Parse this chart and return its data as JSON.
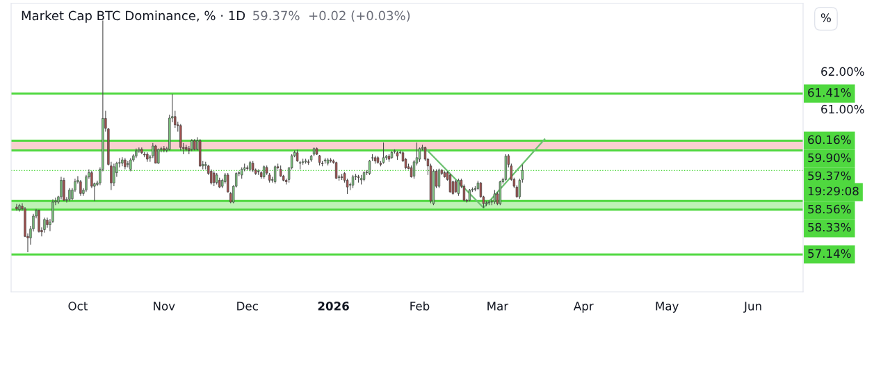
{
  "chart_data": {
    "type": "candlestick",
    "title": "Market Cap BTC Dominance, % · 1D",
    "subtitle": "59.37%  +0.02 (+0.03%)",
    "x": [
      "2025-09-09",
      "2025-09-10",
      "2025-09-11",
      "2025-09-12",
      "2025-09-13",
      "2025-09-14",
      "2025-09-15",
      "2025-09-16",
      "2025-09-17",
      "2025-09-18",
      "2025-09-19",
      "2025-09-20",
      "2025-09-21",
      "2025-09-22",
      "2025-09-23",
      "2025-09-24",
      "2025-09-25",
      "2025-09-26",
      "2025-09-27",
      "2025-09-28",
      "2025-09-29",
      "2025-09-30",
      "2025-10-01",
      "2025-10-02",
      "2025-10-03",
      "2025-10-04",
      "2025-10-05",
      "2025-10-06",
      "2025-10-07",
      "2025-10-08",
      "2025-10-09",
      "2025-10-10",
      "2025-10-11",
      "2025-10-12",
      "2025-10-13",
      "2025-10-14",
      "2025-10-15",
      "2025-10-16",
      "2025-10-17",
      "2025-10-18",
      "2025-10-19",
      "2025-10-20",
      "2025-10-21",
      "2025-10-22",
      "2025-10-23",
      "2025-10-24",
      "2025-10-25",
      "2025-10-26",
      "2025-10-27",
      "2025-10-28",
      "2025-10-29",
      "2025-10-30",
      "2025-10-31",
      "2025-11-01",
      "2025-11-02",
      "2025-11-03",
      "2025-11-04",
      "2025-11-05",
      "2025-11-06",
      "2025-11-07",
      "2025-11-08",
      "2025-11-09",
      "2025-11-10",
      "2025-11-11",
      "2025-11-12",
      "2025-11-13",
      "2025-11-14",
      "2025-11-15",
      "2025-11-16",
      "2025-11-17",
      "2025-11-18",
      "2025-11-19",
      "2025-11-20",
      "2025-11-21",
      "2025-11-22",
      "2025-11-23",
      "2025-11-24",
      "2025-11-25",
      "2025-11-26",
      "2025-11-27",
      "2025-11-28",
      "2025-11-29",
      "2025-11-30",
      "2025-12-01",
      "2025-12-02",
      "2025-12-03",
      "2025-12-04",
      "2025-12-05",
      "2025-12-06",
      "2025-12-07",
      "2025-12-08",
      "2025-12-09",
      "2025-12-10",
      "2025-12-11",
      "2025-12-12",
      "2025-12-13",
      "2025-12-14",
      "2025-12-15",
      "2025-12-16",
      "2025-12-17",
      "2025-12-18",
      "2025-12-19",
      "2025-12-20",
      "2025-12-21",
      "2025-12-22",
      "2025-12-23",
      "2025-12-24",
      "2025-12-25",
      "2025-12-26",
      "2025-12-27",
      "2025-12-28",
      "2025-12-29",
      "2025-12-30",
      "2025-12-31",
      "2026-01-01",
      "2026-01-02",
      "2026-01-03",
      "2026-01-04",
      "2026-01-05",
      "2026-01-06",
      "2026-01-07",
      "2026-01-08",
      "2026-01-09",
      "2026-01-10",
      "2026-01-11",
      "2026-01-12",
      "2026-01-13",
      "2026-01-14",
      "2026-01-15",
      "2026-01-16",
      "2026-01-17",
      "2026-01-18",
      "2026-01-19",
      "2026-01-20",
      "2026-01-21",
      "2026-01-22",
      "2026-01-23",
      "2026-01-24",
      "2026-01-25",
      "2026-01-26",
      "2026-01-27",
      "2026-01-28",
      "2026-01-29",
      "2026-01-30",
      "2026-01-31",
      "2026-02-01",
      "2026-02-02",
      "2026-02-03",
      "2026-02-04",
      "2026-02-05",
      "2026-02-06",
      "2026-02-07",
      "2026-02-08",
      "2026-02-09",
      "2026-02-10",
      "2026-02-11",
      "2026-02-12",
      "2026-02-13",
      "2026-02-14",
      "2026-02-15",
      "2026-02-16",
      "2026-02-17",
      "2026-02-18",
      "2026-02-19",
      "2026-02-20",
      "2026-02-21",
      "2026-02-22",
      "2026-02-23",
      "2026-02-24",
      "2026-02-25",
      "2026-02-26",
      "2026-02-27",
      "2026-02-28",
      "2026-03-01",
      "2026-03-02",
      "2026-03-03",
      "2026-03-04",
      "2026-03-05",
      "2026-03-06",
      "2026-03-07",
      "2026-03-08",
      "2026-03-09",
      "2026-03-10"
    ],
    "ohlc": [
      [
        58.4,
        58.48,
        58.3,
        58.35
      ],
      [
        58.33,
        58.48,
        58.28,
        58.44
      ],
      [
        58.42,
        58.5,
        58.3,
        58.35
      ],
      [
        58.35,
        58.4,
        57.6,
        57.62
      ],
      [
        57.62,
        57.7,
        57.2,
        57.58
      ],
      [
        57.58,
        57.9,
        57.4,
        57.82
      ],
      [
        57.82,
        58.22,
        57.75,
        58.16
      ],
      [
        58.16,
        58.35,
        58.1,
        58.31
      ],
      [
        58.31,
        58.33,
        57.72,
        57.75
      ],
      [
        57.78,
        57.86,
        57.62,
        57.74
      ],
      [
        57.8,
        58.12,
        57.72,
        58.07
      ],
      [
        58.05,
        58.12,
        57.85,
        57.93
      ],
      [
        57.93,
        58.08,
        57.76,
        58.0
      ],
      [
        58.02,
        58.6,
        57.98,
        58.53
      ],
      [
        58.53,
        58.65,
        58.45,
        58.56
      ],
      [
        58.53,
        58.7,
        58.48,
        58.67
      ],
      [
        58.67,
        59.2,
        58.6,
        59.11
      ],
      [
        59.11,
        59.18,
        58.56,
        58.58
      ],
      [
        58.58,
        58.66,
        58.52,
        58.6
      ],
      [
        58.6,
        58.9,
        58.55,
        58.85
      ],
      [
        58.62,
        58.9,
        58.58,
        58.85
      ],
      [
        58.85,
        59.15,
        58.8,
        59.07
      ],
      [
        59.07,
        59.22,
        59.02,
        59.11
      ],
      [
        59.07,
        59.12,
        58.7,
        58.76
      ],
      [
        58.76,
        58.9,
        58.7,
        58.85
      ],
      [
        58.85,
        59.25,
        58.8,
        59.2
      ],
      [
        59.2,
        59.4,
        59.15,
        59.31
      ],
      [
        59.31,
        59.36,
        58.9,
        58.95
      ],
      [
        58.95,
        59.05,
        58.56,
        59.02
      ],
      [
        59.0,
        59.1,
        58.95,
        59.04
      ],
      [
        59.04,
        59.45,
        58.98,
        59.4
      ],
      [
        59.4,
        63.35,
        59.35,
        60.75
      ],
      [
        60.75,
        60.95,
        60.4,
        60.49
      ],
      [
        60.47,
        60.5,
        59.5,
        59.53
      ],
      [
        59.49,
        59.6,
        58.85,
        59.04
      ],
      [
        59.04,
        59.55,
        58.95,
        59.47
      ],
      [
        59.31,
        59.6,
        59.2,
        59.56
      ],
      [
        59.56,
        59.7,
        59.45,
        59.58
      ],
      [
        59.56,
        59.72,
        59.48,
        59.65
      ],
      [
        59.65,
        59.7,
        59.4,
        59.47
      ],
      [
        59.53,
        59.62,
        59.45,
        59.55
      ],
      [
        59.4,
        59.7,
        59.35,
        59.65
      ],
      [
        59.65,
        59.8,
        59.6,
        59.76
      ],
      [
        59.75,
        59.95,
        59.7,
        59.89
      ],
      [
        59.89,
        59.98,
        59.84,
        59.93
      ],
      [
        59.93,
        59.98,
        59.8,
        59.84
      ],
      [
        59.8,
        59.86,
        59.72,
        59.78
      ],
      [
        59.8,
        59.85,
        59.6,
        59.67
      ],
      [
        59.7,
        59.78,
        59.6,
        59.73
      ],
      [
        59.76,
        60.1,
        59.7,
        60.02
      ],
      [
        60.02,
        60.05,
        59.56,
        59.56
      ],
      [
        59.56,
        59.95,
        59.55,
        59.93
      ],
      [
        59.93,
        60.0,
        59.85,
        59.95
      ],
      [
        59.95,
        60.02,
        59.85,
        59.91
      ],
      [
        59.91,
        60.0,
        59.85,
        59.95
      ],
      [
        59.93,
        60.85,
        59.9,
        60.76
      ],
      [
        60.76,
        61.4,
        60.65,
        60.8
      ],
      [
        60.8,
        60.95,
        60.5,
        60.58
      ],
      [
        60.58,
        60.66,
        60.4,
        60.56
      ],
      [
        60.56,
        60.6,
        59.9,
        59.98
      ],
      [
        59.98,
        60.1,
        59.8,
        59.95
      ],
      [
        59.98,
        60.05,
        59.88,
        59.93
      ],
      [
        59.95,
        60.02,
        59.8,
        59.9
      ],
      [
        59.93,
        60.2,
        59.88,
        60.16
      ],
      [
        60.16,
        60.2,
        59.9,
        59.93
      ],
      [
        59.93,
        60.25,
        59.9,
        60.16
      ],
      [
        60.16,
        60.2,
        59.47,
        59.49
      ],
      [
        59.49,
        59.62,
        59.4,
        59.53
      ],
      [
        59.53,
        59.6,
        59.4,
        59.5
      ],
      [
        59.49,
        59.52,
        59.25,
        59.29
      ],
      [
        59.35,
        59.4,
        59.0,
        59.04
      ],
      [
        59.3,
        59.35,
        58.95,
        59.05
      ],
      [
        59.05,
        59.3,
        59.0,
        59.25
      ],
      [
        59.11,
        59.18,
        58.9,
        58.93
      ],
      [
        58.95,
        59.15,
        58.9,
        59.11
      ],
      [
        59.07,
        59.3,
        59.02,
        59.25
      ],
      [
        59.25,
        59.3,
        58.78,
        58.8
      ],
      [
        58.76,
        58.8,
        58.5,
        58.53
      ],
      [
        58.53,
        58.98,
        58.5,
        58.95
      ],
      [
        58.95,
        59.32,
        58.92,
        59.29
      ],
      [
        59.29,
        59.35,
        59.22,
        59.31
      ],
      [
        59.25,
        59.45,
        59.15,
        59.4
      ],
      [
        59.4,
        59.55,
        59.35,
        59.44
      ],
      [
        59.44,
        59.5,
        59.38,
        59.42
      ],
      [
        59.4,
        59.62,
        59.35,
        59.58
      ],
      [
        59.56,
        59.62,
        59.33,
        59.38
      ],
      [
        59.38,
        59.42,
        59.25,
        59.29
      ],
      [
        59.33,
        59.4,
        59.25,
        59.35
      ],
      [
        59.31,
        59.35,
        59.15,
        59.2
      ],
      [
        59.2,
        59.5,
        59.15,
        59.47
      ],
      [
        59.45,
        59.5,
        59.25,
        59.3
      ],
      [
        59.25,
        59.3,
        59.05,
        59.11
      ],
      [
        59.11,
        59.2,
        59.05,
        59.13
      ],
      [
        59.07,
        59.5,
        59.02,
        59.47
      ],
      [
        59.47,
        59.55,
        59.4,
        59.44
      ],
      [
        59.4,
        59.5,
        59.2,
        59.22
      ],
      [
        59.22,
        59.25,
        59.08,
        59.11
      ],
      [
        59.11,
        59.15,
        59.0,
        59.07
      ],
      [
        59.13,
        59.45,
        59.05,
        59.44
      ],
      [
        59.44,
        59.8,
        59.4,
        59.76
      ],
      [
        59.76,
        59.9,
        59.72,
        59.85
      ],
      [
        59.84,
        59.92,
        59.6,
        59.62
      ],
      [
        59.56,
        59.62,
        59.4,
        59.58
      ],
      [
        59.58,
        59.68,
        59.52,
        59.6
      ],
      [
        59.6,
        59.68,
        59.55,
        59.62
      ],
      [
        59.6,
        59.66,
        59.52,
        59.58
      ],
      [
        59.65,
        59.78,
        59.6,
        59.75
      ],
      [
        59.8,
        59.98,
        59.75,
        59.95
      ],
      [
        59.95,
        59.98,
        59.78,
        59.8
      ],
      [
        59.76,
        59.78,
        59.5,
        59.58
      ],
      [
        59.56,
        59.62,
        59.48,
        59.55
      ],
      [
        59.62,
        59.7,
        59.55,
        59.65
      ],
      [
        59.56,
        59.7,
        59.5,
        59.65
      ],
      [
        59.65,
        59.7,
        59.58,
        59.62
      ],
      [
        59.62,
        59.66,
        59.55,
        59.58
      ],
      [
        59.58,
        59.6,
        59.15,
        59.16
      ],
      [
        59.18,
        59.25,
        59.1,
        59.2
      ],
      [
        59.2,
        59.28,
        59.12,
        59.18
      ],
      [
        59.29,
        59.33,
        59.05,
        59.11
      ],
      [
        59.11,
        59.15,
        58.75,
        58.93
      ],
      [
        58.98,
        59.05,
        58.85,
        59.0
      ],
      [
        58.98,
        59.25,
        58.9,
        59.2
      ],
      [
        59.2,
        59.28,
        59.12,
        59.22
      ],
      [
        59.2,
        59.25,
        59.05,
        59.18
      ],
      [
        59.12,
        59.25,
        59.0,
        59.16
      ],
      [
        59.13,
        59.35,
        59.08,
        59.31
      ],
      [
        59.31,
        59.38,
        59.25,
        59.33
      ],
      [
        59.29,
        59.65,
        59.25,
        59.62
      ],
      [
        59.7,
        59.8,
        59.62,
        59.71
      ],
      [
        59.71,
        59.76,
        59.55,
        59.62
      ],
      [
        59.71,
        59.75,
        59.55,
        59.58
      ],
      [
        59.56,
        59.62,
        59.48,
        59.53
      ],
      [
        59.58,
        60.11,
        59.55,
        59.71
      ],
      [
        59.71,
        59.78,
        59.65,
        59.75
      ],
      [
        59.75,
        59.8,
        59.6,
        59.67
      ],
      [
        59.71,
        59.88,
        59.68,
        59.85
      ],
      [
        59.87,
        59.93,
        59.82,
        59.89
      ],
      [
        59.84,
        59.88,
        59.65,
        59.75
      ],
      [
        59.84,
        59.9,
        59.8,
        59.85
      ],
      [
        59.84,
        59.88,
        59.6,
        59.62
      ],
      [
        59.67,
        59.7,
        59.4,
        59.44
      ],
      [
        59.47,
        59.55,
        59.4,
        59.42
      ],
      [
        59.44,
        59.5,
        59.18,
        59.2
      ],
      [
        59.22,
        59.65,
        59.15,
        59.6
      ],
      [
        59.56,
        60.11,
        59.5,
        59.71
      ],
      [
        59.67,
        59.98,
        59.6,
        59.95
      ],
      [
        59.95,
        60.05,
        59.9,
        59.98
      ],
      [
        59.98,
        60.0,
        59.62,
        59.67
      ],
      [
        59.67,
        59.7,
        59.25,
        59.49
      ],
      [
        59.49,
        59.55,
        58.5,
        58.56
      ],
      [
        58.49,
        59.4,
        58.45,
        59.35
      ],
      [
        59.35,
        59.4,
        58.9,
        58.95
      ],
      [
        58.95,
        59.42,
        58.9,
        59.38
      ],
      [
        59.38,
        59.4,
        59.25,
        59.29
      ],
      [
        59.31,
        59.35,
        59.18,
        59.2
      ],
      [
        59.31,
        59.35,
        59.1,
        59.13
      ],
      [
        59.25,
        59.28,
        58.78,
        58.8
      ],
      [
        59.07,
        59.1,
        58.72,
        58.76
      ],
      [
        59.07,
        59.12,
        58.78,
        58.8
      ],
      [
        58.76,
        59.15,
        58.7,
        59.11
      ],
      [
        59.11,
        59.15,
        58.9,
        58.95
      ],
      [
        58.95,
        59.0,
        58.55,
        58.58
      ],
      [
        58.58,
        58.62,
        58.52,
        58.56
      ],
      [
        58.58,
        58.88,
        58.55,
        58.85
      ],
      [
        58.85,
        58.92,
        58.8,
        58.87
      ],
      [
        58.87,
        58.95,
        58.82,
        58.89
      ],
      [
        58.89,
        59.1,
        58.85,
        59.04
      ],
      [
        59.04,
        59.06,
        58.65,
        58.67
      ],
      [
        58.67,
        58.7,
        58.38,
        58.49
      ],
      [
        58.49,
        58.56,
        58.42,
        58.51
      ],
      [
        58.51,
        58.58,
        58.45,
        58.53
      ],
      [
        58.53,
        58.6,
        58.45,
        58.54
      ],
      [
        58.54,
        58.85,
        58.48,
        58.75
      ],
      [
        58.75,
        58.8,
        58.45,
        58.49
      ],
      [
        58.49,
        59.1,
        58.45,
        59.07
      ],
      [
        59.07,
        59.18,
        59.02,
        59.13
      ],
      [
        59.13,
        59.8,
        59.1,
        59.75
      ],
      [
        59.76,
        59.8,
        59.45,
        59.53
      ],
      [
        59.49,
        59.55,
        59.1,
        59.13
      ],
      [
        59.13,
        59.18,
        58.9,
        58.95
      ],
      [
        58.93,
        58.98,
        58.65,
        58.67
      ],
      [
        58.67,
        59.15,
        58.62,
        59.11
      ],
      [
        59.13,
        59.53,
        59.05,
        59.37
      ]
    ],
    "colors": [
      "#a3504e",
      "#7dc67f",
      "#a3504e",
      "#a3504e",
      "#a3504e",
      "#7dc67f",
      "#7dc67f",
      "#7dc67f",
      "#a3504e",
      "#a3504e",
      "#7dc67f",
      "#a3504e",
      "#7dc67f",
      "#7dc67f",
      "#7dc67f",
      "#7dc67f",
      "#7dc67f",
      "#a3504e",
      "#7dc67f",
      "#7dc67f",
      "#7dc67f",
      "#7dc67f",
      "#7dc67f",
      "#a3504e",
      "#7dc67f",
      "#7dc67f",
      "#7dc67f",
      "#a3504e",
      "#7dc67f",
      "#7dc67f",
      "#7dc67f",
      "#7dc67f",
      "#a3504e",
      "#a3504e",
      "#a3504e",
      "#7dc67f",
      "#7dc67f",
      "#7dc67f",
      "#7dc67f",
      "#a3504e",
      "#7dc67f",
      "#7dc67f",
      "#7dc67f",
      "#7dc67f",
      "#7dc67f",
      "#a3504e",
      "#a3504e",
      "#a3504e",
      "#7dc67f",
      "#7dc67f",
      "#a3504e",
      "#7dc67f",
      "#7dc67f",
      "#a3504e",
      "#7dc67f",
      "#7dc67f",
      "#7dc67f",
      "#a3504e",
      "#a3504e",
      "#a3504e",
      "#a3504e",
      "#a3504e",
      "#a3504e",
      "#7dc67f",
      "#a3504e",
      "#7dc67f",
      "#a3504e",
      "#7dc67f",
      "#7dc67f",
      "#a3504e",
      "#a3504e",
      "#a3504e",
      "#7dc67f",
      "#a3504e",
      "#7dc67f",
      "#7dc67f",
      "#a3504e",
      "#a3504e",
      "#7dc67f",
      "#7dc67f",
      "#7dc67f",
      "#7dc67f",
      "#7dc67f",
      "#a3504e",
      "#7dc67f",
      "#a3504e",
      "#a3504e",
      "#7dc67f",
      "#a3504e",
      "#7dc67f",
      "#a3504e",
      "#a3504e",
      "#7dc67f",
      "#7dc67f",
      "#a3504e",
      "#a3504e",
      "#a3504e",
      "#a3504e",
      "#7dc67f",
      "#7dc67f",
      "#7dc67f",
      "#a3504e",
      "#7dc67f",
      "#7dc67f",
      "#7dc67f",
      "#a3504e",
      "#7dc67f",
      "#7dc67f",
      "#a3504e",
      "#a3504e",
      "#a3504e",
      "#7dc67f",
      "#7dc67f",
      "#a3504e",
      "#a3504e",
      "#a3504e",
      "#7dc67f",
      "#a3504e",
      "#a3504e",
      "#a3504e",
      "#7dc67f",
      "#7dc67f",
      "#7dc67f",
      "#a3504e",
      "#7dc67f",
      "#7dc67f",
      "#7dc67f",
      "#7dc67f",
      "#7dc67f",
      "#a3504e",
      "#a3504e",
      "#a3504e",
      "#7dc67f",
      "#7dc67f",
      "#a3504e",
      "#7dc67f",
      "#7dc67f",
      "#a3504e",
      "#7dc67f",
      "#a3504e",
      "#a3504e",
      "#a3504e",
      "#a3504e",
      "#7dc67f",
      "#7dc67f",
      "#7dc67f",
      "#7dc67f",
      "#a3504e",
      "#a3504e",
      "#a3504e",
      "#7dc67f",
      "#a3504e",
      "#7dc67f",
      "#a3504e",
      "#a3504e",
      "#a3504e",
      "#a3504e",
      "#a3504e",
      "#a3504e",
      "#7dc67f",
      "#a3504e",
      "#a3504e",
      "#a3504e",
      "#7dc67f",
      "#7dc67f",
      "#7dc67f",
      "#7dc67f",
      "#a3504e",
      "#a3504e",
      "#7dc67f",
      "#7dc67f",
      "#7dc67f",
      "#7dc67f",
      "#a3504e",
      "#7dc67f",
      "#7dc67f",
      "#7dc67f",
      "#a3504e",
      "#a3504e",
      "#a3504e",
      "#a3504e",
      "#7dc67f",
      "#7dc67f"
    ],
    "series": [
      {
        "type": "line",
        "color": "#6cc070",
        "x": [
          "2026-02-03",
          "2026-02-24",
          "2026-03-18"
        ],
        "values": [
          59.96,
          58.38,
          60.2
        ]
      }
    ],
    "xlim": [
      "2025-09-07",
      "2026-06-19"
    ],
    "xticks": [
      {
        "value": "2025-10-01",
        "label": "Oct"
      },
      {
        "value": "2025-11-01",
        "label": "Nov"
      },
      {
        "value": "2025-12-01",
        "label": "Dec"
      },
      {
        "value": "2026-01-01",
        "label": "2026"
      },
      {
        "value": "2026-02-01",
        "label": "Feb"
      },
      {
        "value": "2026-03-01",
        "label": "Mar"
      },
      {
        "value": "2026-04-01",
        "label": "Apr"
      },
      {
        "value": "2026-05-01",
        "label": "May"
      },
      {
        "value": "2026-06-01",
        "label": "Jun"
      }
    ],
    "ylim": [
      56.15,
      63.8
    ],
    "yticks": [
      {
        "value": 61,
        "label": "61.00%"
      },
      {
        "value": 62,
        "label": "62.00%"
      }
    ],
    "bands": [
      {
        "axis": "y",
        "from": 59.9,
        "to": 60.16,
        "color": "#f9d0d0"
      },
      {
        "axis": "y",
        "from": 58.33,
        "to": 58.56,
        "color": "#bff2b6"
      }
    ],
    "ref_lines": [
      {
        "axis": "y",
        "value": 61.41,
        "label": "61.41%",
        "color": "#4fd83f"
      },
      {
        "axis": "y",
        "value": 60.16,
        "label": "60.16%",
        "color": "#4fd83f"
      },
      {
        "axis": "y",
        "value": 59.9,
        "label": "59.90%",
        "color": "#4fd83f"
      },
      {
        "axis": "y",
        "value": 59.37,
        "label": "59.37%",
        "color": "#4fd83f",
        "line_style": "dotted"
      },
      {
        "axis": "y",
        "value": 58.56,
        "label": "58.56%",
        "color": "#4fd83f"
      },
      {
        "axis": "y",
        "value": 58.33,
        "label": "58.33%",
        "color": "#4fd83f"
      },
      {
        "axis": "y",
        "value": 57.14,
        "label": "57.14%",
        "color": "#4fd83f"
      }
    ],
    "annotations": [
      "19:29:08",
      "%"
    ]
  }
}
